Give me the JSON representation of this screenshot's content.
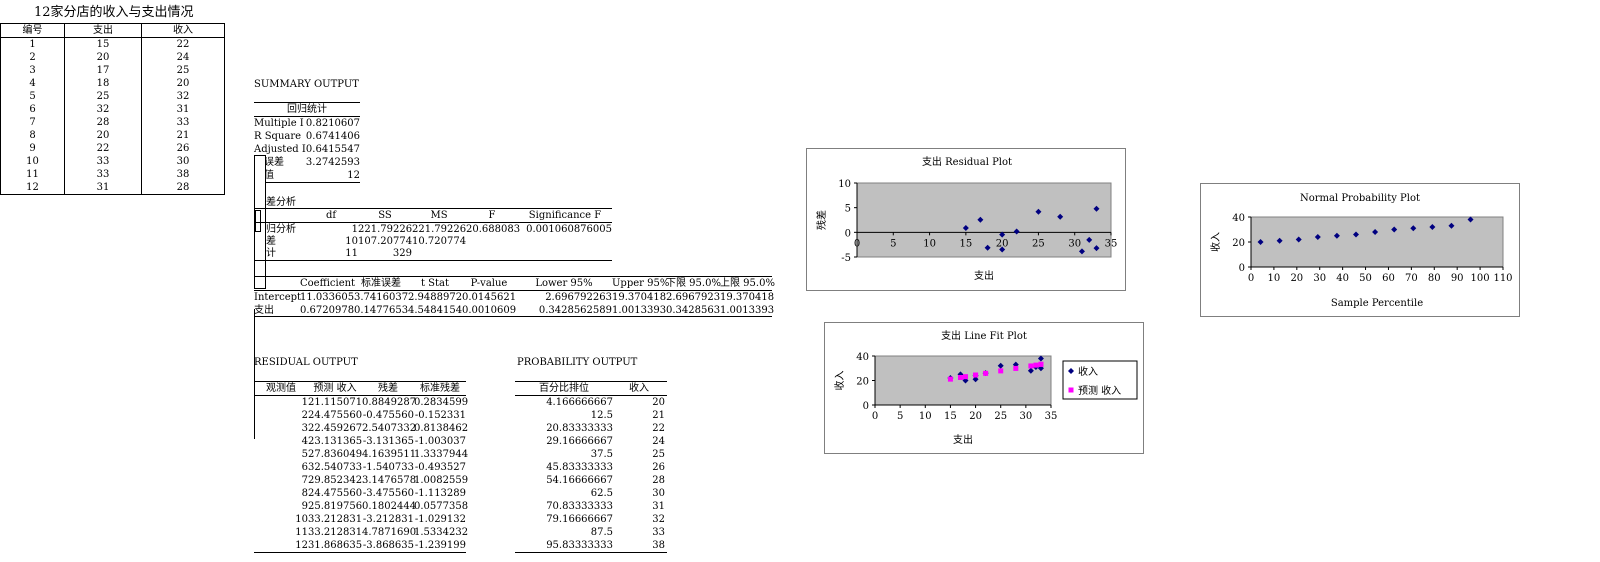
{
  "sheet_title": "12家分店的收入与支出情况",
  "data_table": {
    "headers": [
      "编号",
      "支出",
      "收入"
    ],
    "rows": [
      [
        "1",
        "15",
        "22"
      ],
      [
        "2",
        "20",
        "24"
      ],
      [
        "3",
        "17",
        "25"
      ],
      [
        "4",
        "18",
        "20"
      ],
      [
        "5",
        "25",
        "32"
      ],
      [
        "6",
        "32",
        "31"
      ],
      [
        "7",
        "28",
        "33"
      ],
      [
        "8",
        "20",
        "21"
      ],
      [
        "9",
        "22",
        "26"
      ],
      [
        "10",
        "33",
        "30"
      ],
      [
        "11",
        "33",
        "38"
      ],
      [
        "12",
        "31",
        "28"
      ]
    ]
  },
  "summary": {
    "title": "SUMMARY OUTPUT",
    "regstats_header": "回归统计",
    "regstats": [
      {
        "label": "Multiple I",
        "value": "0.8210607"
      },
      {
        "label": "R Square",
        "value": "0.6741406"
      },
      {
        "label": "Adjusted I",
        "value": "0.6415547"
      },
      {
        "label": "准误差",
        "value": "3.2742593"
      },
      {
        "label": "测值",
        "value": "12"
      }
    ],
    "anova_title": "差分析",
    "anova_headers": [
      "df",
      "SS",
      "MS",
      "F",
      "Significance F"
    ],
    "anova_rows": [
      {
        "label": "归分析",
        "df": "1",
        "ss": "221.79226",
        "ms": "221.79226",
        "f": "20.688083",
        "sig": "0.001060876005"
      },
      {
        "label": "差",
        "df": "10",
        "ss": "107.20774",
        "ms": "10.720774",
        "f": "",
        "sig": ""
      },
      {
        "label": "计",
        "df": "11",
        "ss": "329",
        "ms": "",
        "f": "",
        "sig": ""
      }
    ],
    "coef_headers": [
      "Coefficient",
      "标准误差",
      "t Stat",
      "P-value",
      "Lower 95%",
      "Upper 95%",
      "下限 95.0%",
      "上限 95.0%"
    ],
    "coef_rows": [
      {
        "label": "Intercept",
        "c": "11.033605",
        "se": "3.7416037",
        "t": "2.9488972",
        "p": "0.0145621",
        "lo": "2.696792263",
        "up": "19.370418",
        "lo2": "2.6967923",
        "up2": "19.370418"
      },
      {
        "label": "支出",
        "c": "0.6720978",
        "se": "0.1477653",
        "t": "4.5484154",
        "p": "0.0010609",
        "lo": "0.3428562589",
        "up": "1.0013393",
        "lo2": "0.3428563",
        "up2": "1.0013393"
      }
    ]
  },
  "residual": {
    "title": "RESIDUAL OUTPUT",
    "headers": [
      "观测值",
      "预测 收入",
      "残差",
      "标准残差"
    ],
    "rows": [
      [
        "1",
        "21.115071",
        "0.8849287",
        "0.2834599"
      ],
      [
        "2",
        "24.475560",
        "-0.475560",
        "-0.152331"
      ],
      [
        "3",
        "22.459267",
        "2.5407332",
        "0.8138462"
      ],
      [
        "4",
        "23.131365",
        "-3.131365",
        "-1.003037"
      ],
      [
        "5",
        "27.836049",
        "4.1639511",
        "1.3337944"
      ],
      [
        "6",
        "32.540733",
        "-1.540733",
        "-0.493527"
      ],
      [
        "7",
        "29.852342",
        "3.1476578",
        "1.0082559"
      ],
      [
        "8",
        "24.475560",
        "-3.475560",
        "-1.113289"
      ],
      [
        "9",
        "25.819756",
        "0.1802444",
        "0.0577358"
      ],
      [
        "10",
        "33.212831",
        "-3.212831",
        "-1.029132"
      ],
      [
        "11",
        "33.212831",
        "4.7871690",
        "1.5334232"
      ],
      [
        "12",
        "31.868635",
        "-3.868635",
        "-1.239199"
      ]
    ]
  },
  "probability": {
    "title": "PROBABILITY OUTPUT",
    "headers": [
      "百分比排位",
      "收入"
    ],
    "rows": [
      [
        "4.166666667",
        "20"
      ],
      [
        "12.5",
        "21"
      ],
      [
        "20.83333333",
        "22"
      ],
      [
        "29.16666667",
        "24"
      ],
      [
        "37.5",
        "25"
      ],
      [
        "45.83333333",
        "26"
      ],
      [
        "54.16666667",
        "28"
      ],
      [
        "62.5",
        "30"
      ],
      [
        "70.83333333",
        "31"
      ],
      [
        "79.16666667",
        "32"
      ],
      [
        "87.5",
        "33"
      ],
      [
        "95.83333333",
        "38"
      ]
    ]
  },
  "chart_data": [
    {
      "type": "scatter",
      "title": "支出 Residual Plot",
      "xlabel": "支出",
      "ylabel": "残差",
      "xlim": [
        0,
        35
      ],
      "ylim": [
        -5,
        10
      ],
      "xticks": [
        "0",
        "5",
        "10",
        "15",
        "20",
        "25",
        "30",
        "35"
      ],
      "yticks": [
        "-5",
        "0",
        "5",
        "10"
      ],
      "marker_color": "#000080",
      "plot_bg": "#c0c0c0",
      "series": [
        {
          "x": [
            15,
            20,
            17,
            18,
            25,
            32,
            28,
            20,
            22,
            33,
            33,
            31
          ],
          "y": [
            0.885,
            -0.476,
            2.541,
            -3.131,
            4.164,
            -1.541,
            3.148,
            -3.476,
            0.18,
            -3.213,
            4.787,
            -3.869
          ]
        }
      ]
    },
    {
      "type": "scatter",
      "title": "支出 Line Fit  Plot",
      "xlabel": "支出",
      "ylabel": "收入",
      "xlim": [
        0,
        35
      ],
      "ylim": [
        0,
        40
      ],
      "xticks": [
        "0",
        "5",
        "10",
        "15",
        "20",
        "25",
        "30",
        "35"
      ],
      "yticks": [
        "0",
        "20",
        "40"
      ],
      "plot_bg": "#c0c0c0",
      "legend": "right",
      "series": [
        {
          "name": "收入",
          "marker": "diamond",
          "color": "#000080",
          "x": [
            15,
            20,
            17,
            18,
            25,
            32,
            28,
            20,
            22,
            33,
            33,
            31
          ],
          "y": [
            22,
            24,
            25,
            20,
            32,
            31,
            33,
            21,
            26,
            30,
            38,
            28
          ]
        },
        {
          "name": "预测 收入",
          "marker": "square",
          "color": "#ff00ff",
          "x": [
            15,
            20,
            17,
            18,
            25,
            32,
            28,
            20,
            22,
            33,
            33,
            31
          ],
          "y": [
            21.115,
            24.476,
            22.459,
            23.131,
            27.836,
            32.541,
            29.852,
            24.476,
            25.82,
            33.213,
            33.213,
            31.869
          ]
        }
      ]
    },
    {
      "type": "scatter",
      "title": "Normal Probability Plot",
      "xlabel": "Sample Percentile",
      "ylabel": "收入",
      "xlim": [
        0,
        110
      ],
      "ylim": [
        0,
        40
      ],
      "xticks": [
        "0",
        "10",
        "20",
        "30",
        "40",
        "50",
        "60",
        "70",
        "80",
        "90",
        "100",
        "110"
      ],
      "yticks": [
        "0",
        "20",
        "40"
      ],
      "marker_color": "#000080",
      "plot_bg": "#c0c0c0",
      "series": [
        {
          "x": [
            4.167,
            12.5,
            20.833,
            29.167,
            37.5,
            45.833,
            54.167,
            62.5,
            70.833,
            79.167,
            87.5,
            95.833
          ],
          "y": [
            20,
            21,
            22,
            24,
            25,
            26,
            28,
            30,
            31,
            32,
            33,
            38
          ]
        }
      ]
    }
  ]
}
